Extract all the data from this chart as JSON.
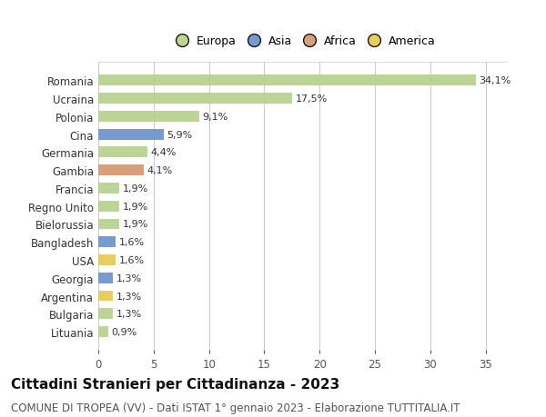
{
  "countries": [
    "Romania",
    "Ucraina",
    "Polonia",
    "Cina",
    "Germania",
    "Gambia",
    "Francia",
    "Regno Unito",
    "Bielorussia",
    "Bangladesh",
    "USA",
    "Georgia",
    "Argentina",
    "Bulgaria",
    "Lituania"
  ],
  "values": [
    34.1,
    17.5,
    9.1,
    5.9,
    4.4,
    4.1,
    1.9,
    1.9,
    1.9,
    1.6,
    1.6,
    1.3,
    1.3,
    1.3,
    0.9
  ],
  "labels": [
    "34,1%",
    "17,5%",
    "9,1%",
    "5,9%",
    "4,4%",
    "4,1%",
    "1,9%",
    "1,9%",
    "1,9%",
    "1,6%",
    "1,6%",
    "1,3%",
    "1,3%",
    "1,3%",
    "0,9%"
  ],
  "continents": [
    "Europa",
    "Europa",
    "Europa",
    "Asia",
    "Europa",
    "Africa",
    "Europa",
    "Europa",
    "Europa",
    "Asia",
    "America",
    "Asia",
    "America",
    "Europa",
    "Europa"
  ],
  "colors": {
    "Europa": "#b5d08a",
    "Asia": "#6b8fc9",
    "Africa": "#d4956a",
    "America": "#e8c84a"
  },
  "legend_order": [
    "Europa",
    "Asia",
    "Africa",
    "America"
  ],
  "legend_colors": {
    "Europa": "#b5d08a",
    "Asia": "#6b8fc9",
    "Africa": "#d4956a",
    "America": "#e8c84a"
  },
  "xlim": [
    0,
    37
  ],
  "xticks": [
    0,
    5,
    10,
    15,
    20,
    25,
    30,
    35
  ],
  "title": "Cittadini Stranieri per Cittadinanza - 2023",
  "subtitle": "COMUNE DI TROPEA (VV) - Dati ISTAT 1° gennaio 2023 - Elaborazione TUTTITALIA.IT",
  "background_color": "#ffffff",
  "plot_bg_color": "#ffffff",
  "grid_color": "#cccccc",
  "bar_height": 0.6,
  "title_fontsize": 11,
  "subtitle_fontsize": 8.5,
  "label_fontsize": 8,
  "tick_fontsize": 8.5,
  "legend_fontsize": 9
}
